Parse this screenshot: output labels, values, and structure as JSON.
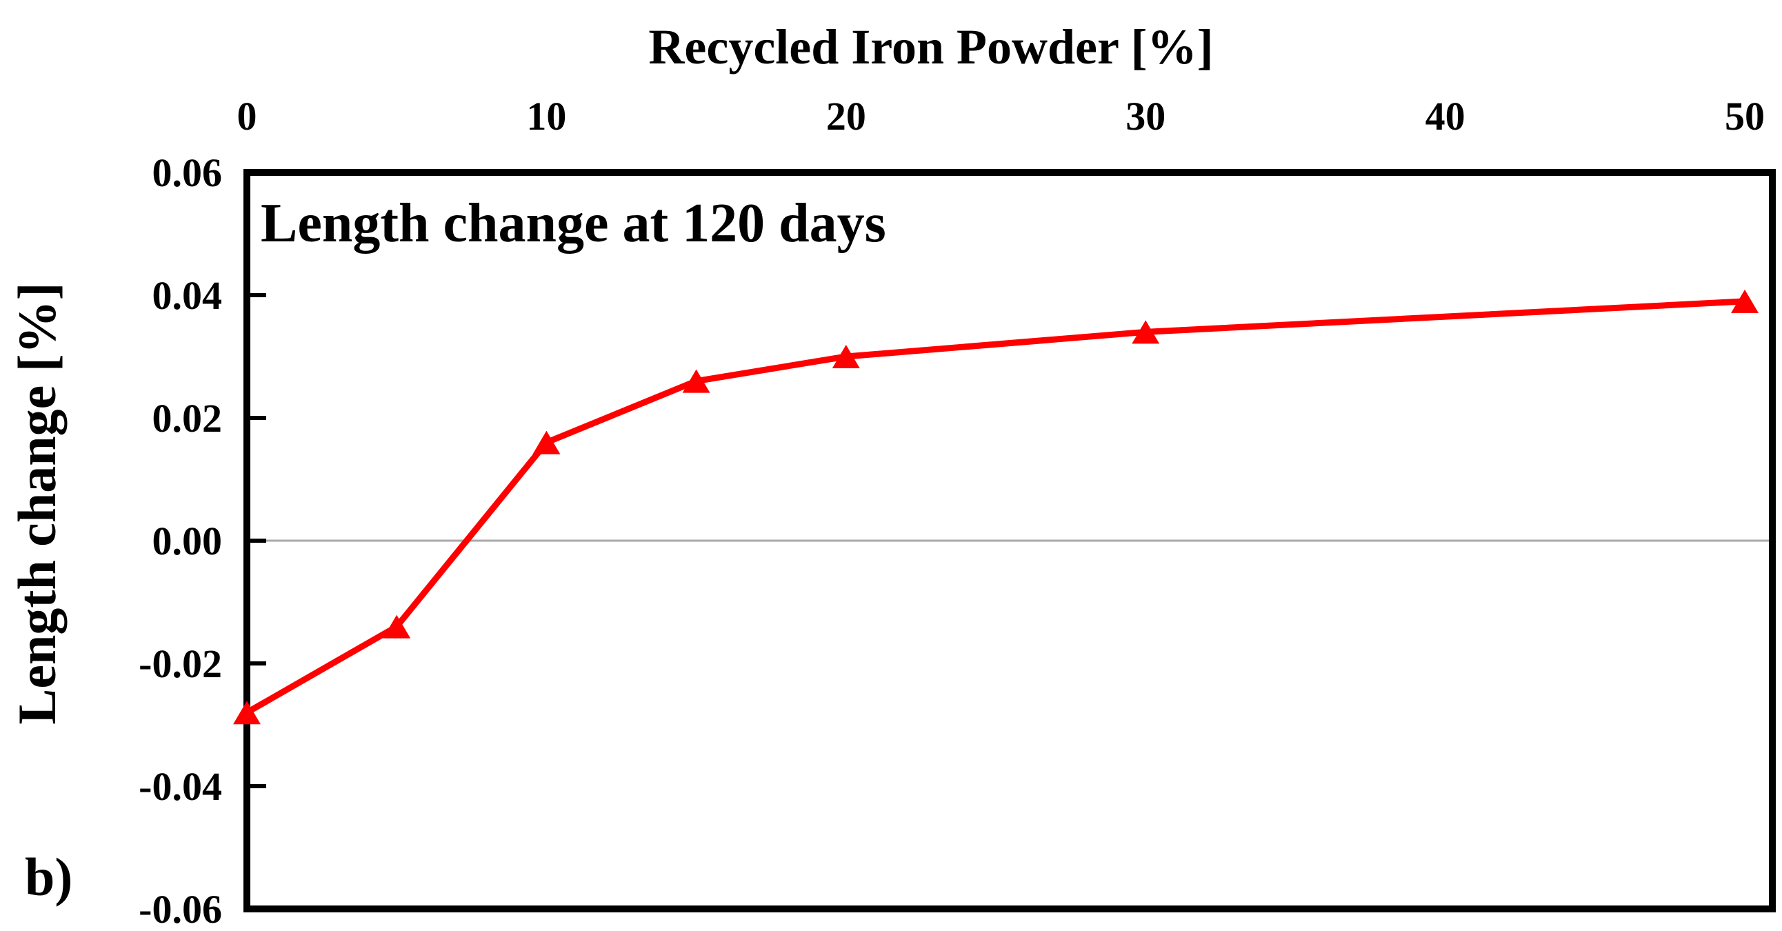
{
  "figure": {
    "panel_label": "b)",
    "background": "#ffffff"
  },
  "chart_data": {
    "type": "line",
    "title": "Recycled Iron Powder [%]",
    "title_position": "top",
    "xlabel": "Recycled Iron Powder [%]",
    "xlabel_position": "top",
    "ylabel": "Length change [%]",
    "annotation": "Length change at 120 days",
    "x": [
      0,
      5,
      10,
      15,
      20,
      30,
      50
    ],
    "series": [
      {
        "name": "Length change at 120 days",
        "values": [
          -0.028,
          -0.014,
          0.016,
          0.026,
          0.03,
          0.034,
          0.039
        ],
        "color": "#ff0000",
        "marker": "triangle-up",
        "line_width": 9
      }
    ],
    "x_ticks": [
      0,
      10,
      20,
      30,
      40,
      50
    ],
    "y_ticks": [
      "0.06",
      "0.04",
      "0.02",
      "0.00",
      "-0.02",
      "-0.04",
      "-0.06"
    ],
    "xlim": [
      0,
      50.92
    ],
    "ylim": [
      -0.06,
      0.06
    ],
    "grid": "zero-line-only",
    "zero_line_color": "#a9a9a9",
    "axis_color": "#000000",
    "text_color": "#000000",
    "legend_position": "none"
  }
}
